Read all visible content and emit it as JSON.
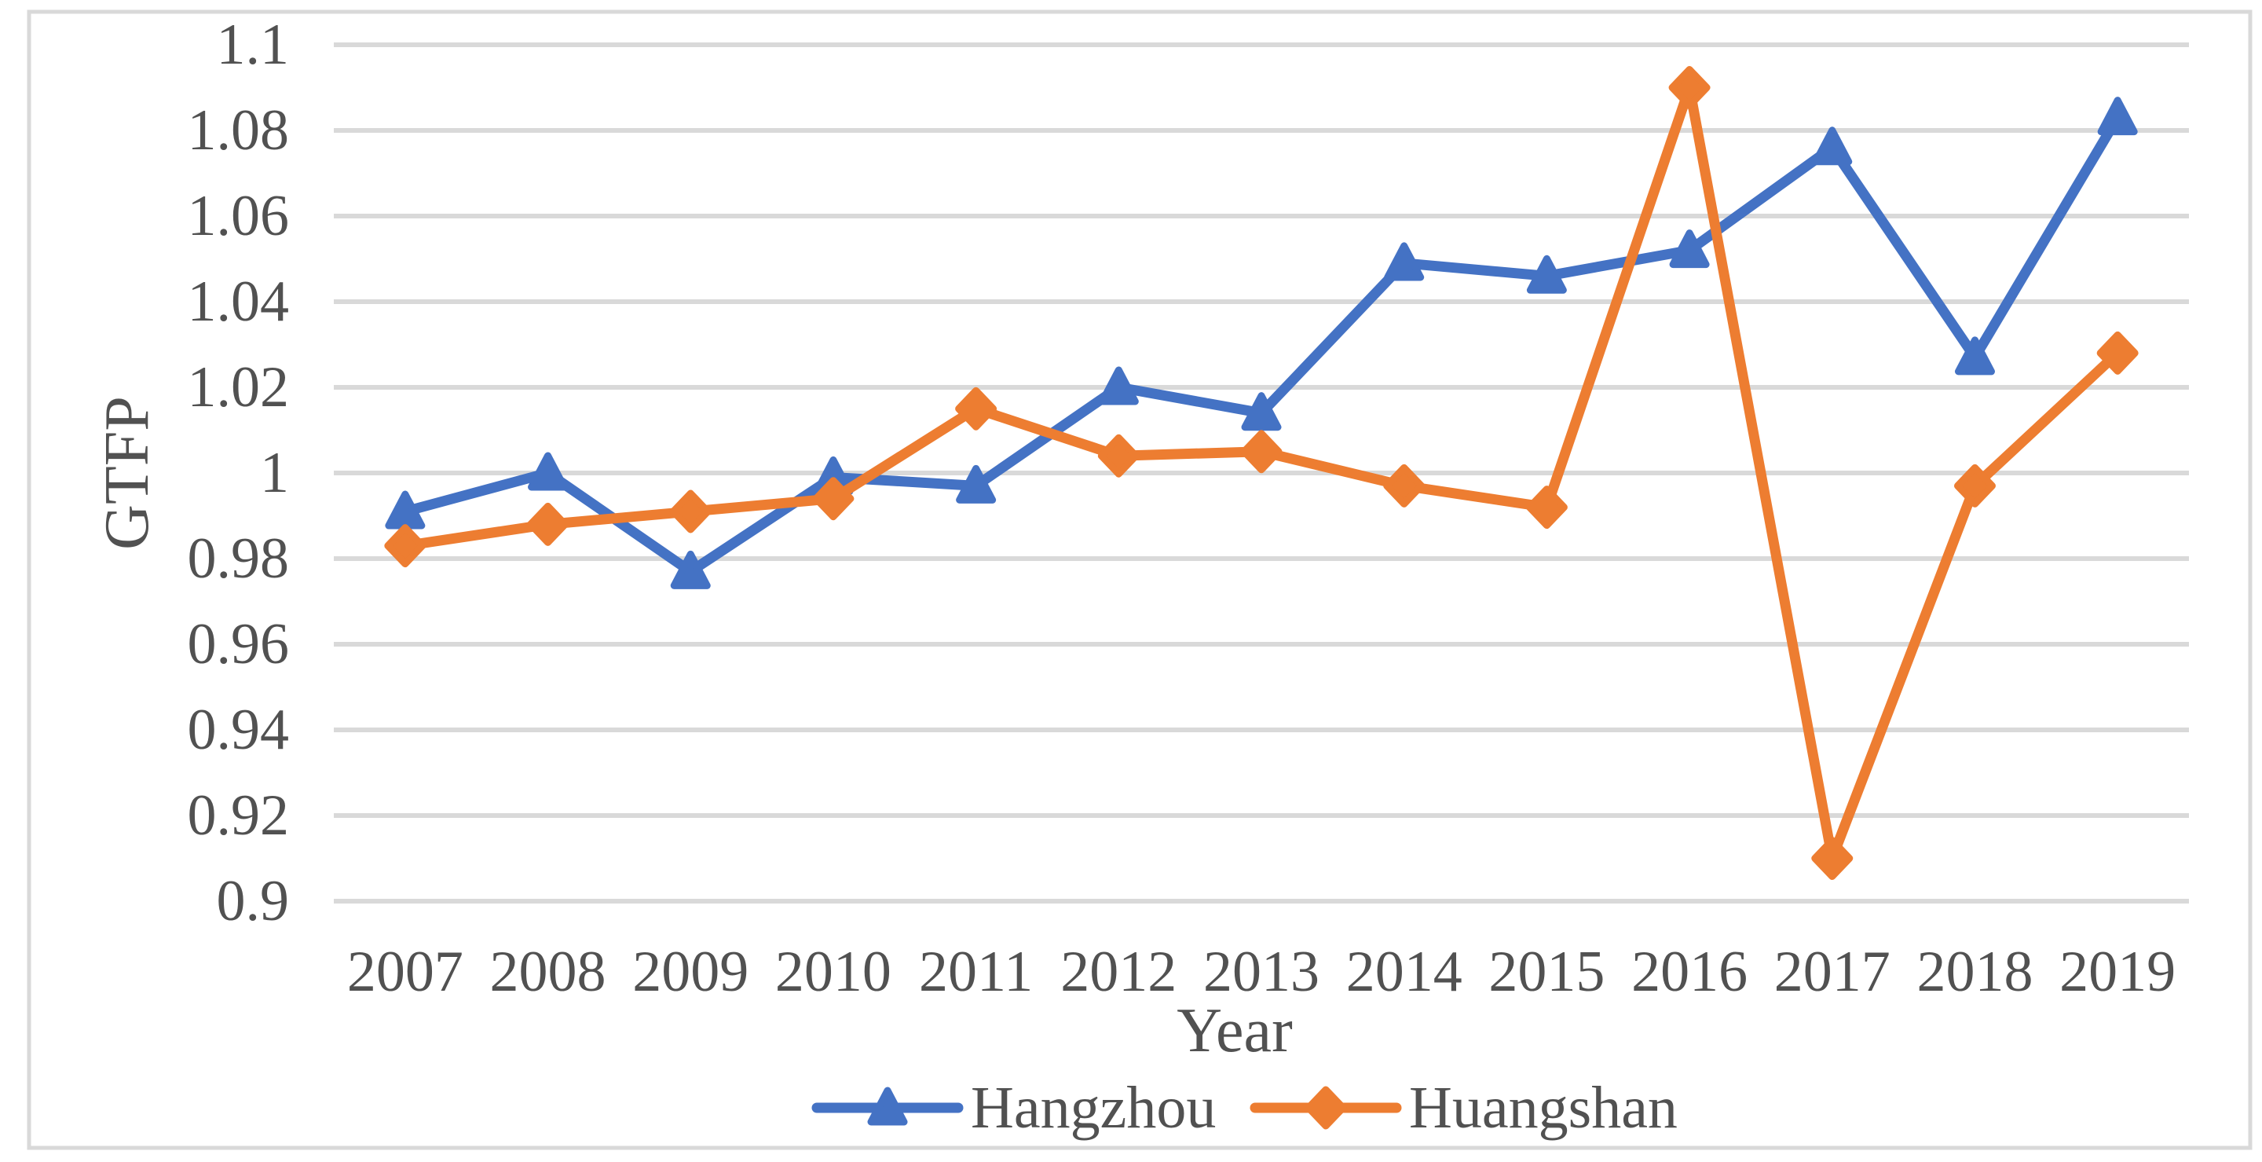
{
  "chart_data": {
    "type": "line",
    "title": "",
    "xlabel": "Year",
    "ylabel": "GTFP",
    "categories": [
      "2007",
      "2008",
      "2009",
      "2010",
      "2011",
      "2012",
      "2013",
      "2014",
      "2015",
      "2016",
      "2017",
      "2018",
      "2019"
    ],
    "series": [
      {
        "name": "Hangzhou",
        "color": "#4472C4",
        "marker": "triangle",
        "values": [
          0.991,
          1.0,
          0.977,
          0.999,
          0.997,
          1.02,
          1.014,
          1.049,
          1.046,
          1.052,
          1.076,
          1.027,
          1.083
        ]
      },
      {
        "name": "Huangshan",
        "color": "#ED7D31",
        "marker": "diamond",
        "values": [
          0.983,
          0.988,
          0.991,
          0.994,
          1.015,
          1.004,
          1.005,
          0.997,
          0.992,
          1.09,
          0.91,
          0.997,
          1.028
        ]
      }
    ],
    "ylim": [
      0.9,
      1.1
    ],
    "y_ticks": [
      {
        "value": 1.1,
        "label": "1.1"
      },
      {
        "value": 1.08,
        "label": "1.08"
      },
      {
        "value": 1.06,
        "label": "1.06"
      },
      {
        "value": 1.04,
        "label": "1.04"
      },
      {
        "value": 1.02,
        "label": "1.02"
      },
      {
        "value": 1.0,
        "label": "1"
      },
      {
        "value": 0.98,
        "label": "0.98"
      },
      {
        "value": 0.96,
        "label": "0.96"
      },
      {
        "value": 0.94,
        "label": "0.94"
      },
      {
        "value": 0.92,
        "label": "0.92"
      },
      {
        "value": 0.9,
        "label": "0.9"
      }
    ],
    "grid": "horizontal-only",
    "legend_position": "bottom-center",
    "colors": {
      "grid": "#D9D9D9",
      "border": "#D9D9D9",
      "text": "#515151",
      "background": "#FFFFFF"
    }
  }
}
